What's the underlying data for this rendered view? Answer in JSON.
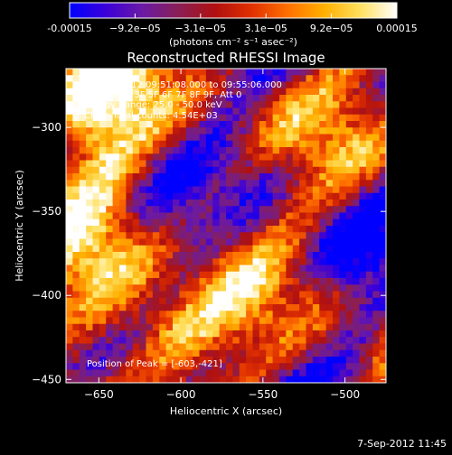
{
  "colorbar": {
    "ticks": [
      "-0.00015",
      "−9.2e−05",
      "−3.1e−05",
      "3.1e−05",
      "9.2e−05",
      "0.00015"
    ],
    "unit_label": "(photons cm⁻² s⁻¹ asec⁻²)",
    "colors": [
      "#0000ff",
      "#3b00d8",
      "#6a1aa5",
      "#8a1f55",
      "#b01010",
      "#e03000",
      "#ff7000",
      "#ffb000",
      "#ffe060",
      "#ffffff"
    ]
  },
  "info_lines": [
    "3-Sep-2012 09:51:08.000 to 09:55:06.000",
    "Detectors: 3F 5F 6F 7F 8F 9F, Att 0",
    "Energy Range: 25.0 - 50.0 keV",
    "Clean    Total counts: 4.54E+03"
  ],
  "peak_label": "Position of Peak = [-603,-421]",
  "footer_date": "7-Sep-2012 11:45",
  "chart_data": {
    "type": "heatmap",
    "title": "Reconstructed RHESSI Image",
    "xlabel": "Heliocentric X (arcsec)",
    "ylabel": "Heliocentric Y (arcsec)",
    "xlim": [
      -670,
      -475
    ],
    "ylim": [
      -452,
      -265
    ],
    "xticks": [
      -650,
      -600,
      -550,
      -500
    ],
    "yticks": [
      -300,
      -350,
      -400,
      -450
    ],
    "grid": false,
    "peak": [
      -603,
      -421
    ]
  }
}
